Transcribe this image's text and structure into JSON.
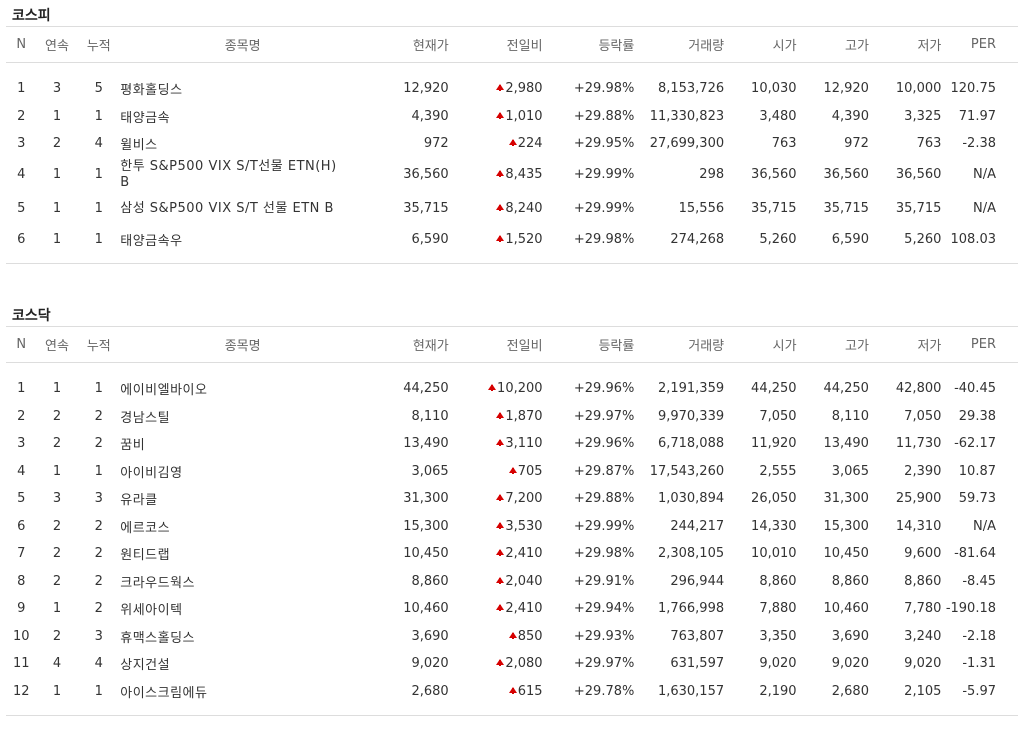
{
  "columns": [
    "N",
    "연속",
    "누적",
    "종목명",
    "현재가",
    "전일비",
    "등락률",
    "거래량",
    "시가",
    "고가",
    "저가",
    "PER"
  ],
  "colors": {
    "up": "#d60000",
    "border": "#dddddd"
  },
  "sections": [
    {
      "title": "코스피",
      "rows": [
        {
          "n": "1",
          "consec": "3",
          "cum": "5",
          "name": "평화홀딩스",
          "price": "12,920",
          "change": "2,980",
          "rate": "+29.98%",
          "volume": "8,153,726",
          "open": "10,030",
          "high": "12,920",
          "low": "10,000",
          "per": "120.75"
        },
        {
          "n": "2",
          "consec": "1",
          "cum": "1",
          "name": "태양금속",
          "price": "4,390",
          "change": "1,010",
          "rate": "+29.88%",
          "volume": "11,330,823",
          "open": "3,480",
          "high": "4,390",
          "low": "3,325",
          "per": "71.97"
        },
        {
          "n": "3",
          "consec": "2",
          "cum": "4",
          "name": "윌비스",
          "price": "972",
          "change": "224",
          "rate": "+29.95%",
          "volume": "27,699,300",
          "open": "763",
          "high": "972",
          "low": "763",
          "per": "-2.38"
        },
        {
          "n": "4",
          "consec": "1",
          "cum": "1",
          "name": "한투 S&P500 VIX S/T선물 ETN(H) B",
          "price": "36,560",
          "change": "8,435",
          "rate": "+29.99%",
          "volume": "298",
          "open": "36,560",
          "high": "36,560",
          "low": "36,560",
          "per": "N/A"
        },
        {
          "n": "5",
          "consec": "1",
          "cum": "1",
          "name": "삼성 S&P500 VIX S/T 선물 ETN B",
          "price": "35,715",
          "change": "8,240",
          "rate": "+29.99%",
          "volume": "15,556",
          "open": "35,715",
          "high": "35,715",
          "low": "35,715",
          "per": "N/A"
        },
        {
          "n": "6",
          "consec": "1",
          "cum": "1",
          "name": "태양금속우",
          "price": "6,590",
          "change": "1,520",
          "rate": "+29.98%",
          "volume": "274,268",
          "open": "5,260",
          "high": "6,590",
          "low": "5,260",
          "per": "108.03"
        }
      ]
    },
    {
      "title": "코스닥",
      "rows": [
        {
          "n": "1",
          "consec": "1",
          "cum": "1",
          "name": "에이비엘바이오",
          "price": "44,250",
          "change": "10,200",
          "rate": "+29.96%",
          "volume": "2,191,359",
          "open": "44,250",
          "high": "44,250",
          "low": "42,800",
          "per": "-40.45"
        },
        {
          "n": "2",
          "consec": "2",
          "cum": "2",
          "name": "경남스틸",
          "price": "8,110",
          "change": "1,870",
          "rate": "+29.97%",
          "volume": "9,970,339",
          "open": "7,050",
          "high": "8,110",
          "low": "7,050",
          "per": "29.38"
        },
        {
          "n": "3",
          "consec": "2",
          "cum": "2",
          "name": "꿈비",
          "price": "13,490",
          "change": "3,110",
          "rate": "+29.96%",
          "volume": "6,718,088",
          "open": "11,920",
          "high": "13,490",
          "low": "11,730",
          "per": "-62.17"
        },
        {
          "n": "4",
          "consec": "1",
          "cum": "1",
          "name": "아이비김영",
          "price": "3,065",
          "change": "705",
          "rate": "+29.87%",
          "volume": "17,543,260",
          "open": "2,555",
          "high": "3,065",
          "low": "2,390",
          "per": "10.87"
        },
        {
          "n": "5",
          "consec": "3",
          "cum": "3",
          "name": "유라클",
          "price": "31,300",
          "change": "7,200",
          "rate": "+29.88%",
          "volume": "1,030,894",
          "open": "26,050",
          "high": "31,300",
          "low": "25,900",
          "per": "59.73"
        },
        {
          "n": "6",
          "consec": "2",
          "cum": "2",
          "name": "에르코스",
          "price": "15,300",
          "change": "3,530",
          "rate": "+29.99%",
          "volume": "244,217",
          "open": "14,330",
          "high": "15,300",
          "low": "14,310",
          "per": "N/A"
        },
        {
          "n": "7",
          "consec": "2",
          "cum": "2",
          "name": "원티드랩",
          "price": "10,450",
          "change": "2,410",
          "rate": "+29.98%",
          "volume": "2,308,105",
          "open": "10,010",
          "high": "10,450",
          "low": "9,600",
          "per": "-81.64"
        },
        {
          "n": "8",
          "consec": "2",
          "cum": "2",
          "name": "크라우드웍스",
          "price": "8,860",
          "change": "2,040",
          "rate": "+29.91%",
          "volume": "296,944",
          "open": "8,860",
          "high": "8,860",
          "low": "8,860",
          "per": "-8.45"
        },
        {
          "n": "9",
          "consec": "1",
          "cum": "2",
          "name": "위세아이텍",
          "price": "10,460",
          "change": "2,410",
          "rate": "+29.94%",
          "volume": "1,766,998",
          "open": "7,880",
          "high": "10,460",
          "low": "7,780",
          "per": "-190.18"
        },
        {
          "n": "10",
          "consec": "2",
          "cum": "3",
          "name": "휴맥스홀딩스",
          "price": "3,690",
          "change": "850",
          "rate": "+29.93%",
          "volume": "763,807",
          "open": "3,350",
          "high": "3,690",
          "low": "3,240",
          "per": "-2.18"
        },
        {
          "n": "11",
          "consec": "4",
          "cum": "4",
          "name": "상지건설",
          "price": "9,020",
          "change": "2,080",
          "rate": "+29.97%",
          "volume": "631,597",
          "open": "9,020",
          "high": "9,020",
          "low": "9,020",
          "per": "-1.31"
        },
        {
          "n": "12",
          "consec": "1",
          "cum": "1",
          "name": "아이스크림에듀",
          "price": "2,680",
          "change": "615",
          "rate": "+29.78%",
          "volume": "1,630,157",
          "open": "2,190",
          "high": "2,680",
          "low": "2,105",
          "per": "-5.97"
        }
      ]
    }
  ]
}
